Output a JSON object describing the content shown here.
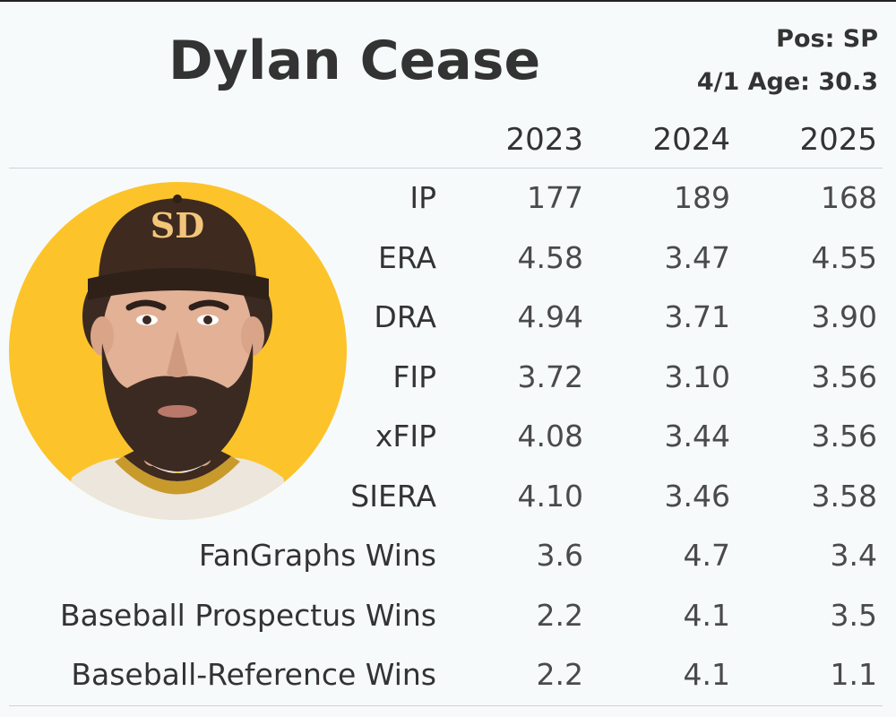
{
  "player": {
    "name": "Dylan Cease",
    "position": "Pos: SP",
    "age": "4/1 Age: 30.3"
  },
  "years": [
    "2023",
    "2024",
    "2025"
  ],
  "rows": [
    {
      "label": "IP",
      "values": [
        "177",
        "189",
        "168"
      ]
    },
    {
      "label": "ERA",
      "values": [
        "4.58",
        "3.47",
        "4.55"
      ]
    },
    {
      "label": "DRA",
      "values": [
        "4.94",
        "3.71",
        "3.90"
      ]
    },
    {
      "label": "FIP",
      "values": [
        "3.72",
        "3.10",
        "3.56"
      ]
    },
    {
      "label": "xFIP",
      "values": [
        "4.08",
        "3.44",
        "3.56"
      ]
    },
    {
      "label": "SIERA",
      "values": [
        "4.10",
        "3.46",
        "3.58"
      ]
    },
    {
      "label": "FanGraphs Wins",
      "values": [
        "3.6",
        "4.7",
        "3.4"
      ]
    },
    {
      "label": "Baseball Prospectus Wins",
      "values": [
        "2.2",
        "4.1",
        "3.5"
      ]
    },
    {
      "label": "Baseball-Reference Wins",
      "values": [
        "2.2",
        "4.1",
        "1.1"
      ]
    }
  ],
  "colors": {
    "background": "#f6fafb",
    "text": "#333333",
    "avatar_background": "#fcc42a",
    "cap": "#3e2a1f",
    "cap_logo": "#f2c57a",
    "divider": "#cfd3d6"
  },
  "cap_logo_text": "SD"
}
